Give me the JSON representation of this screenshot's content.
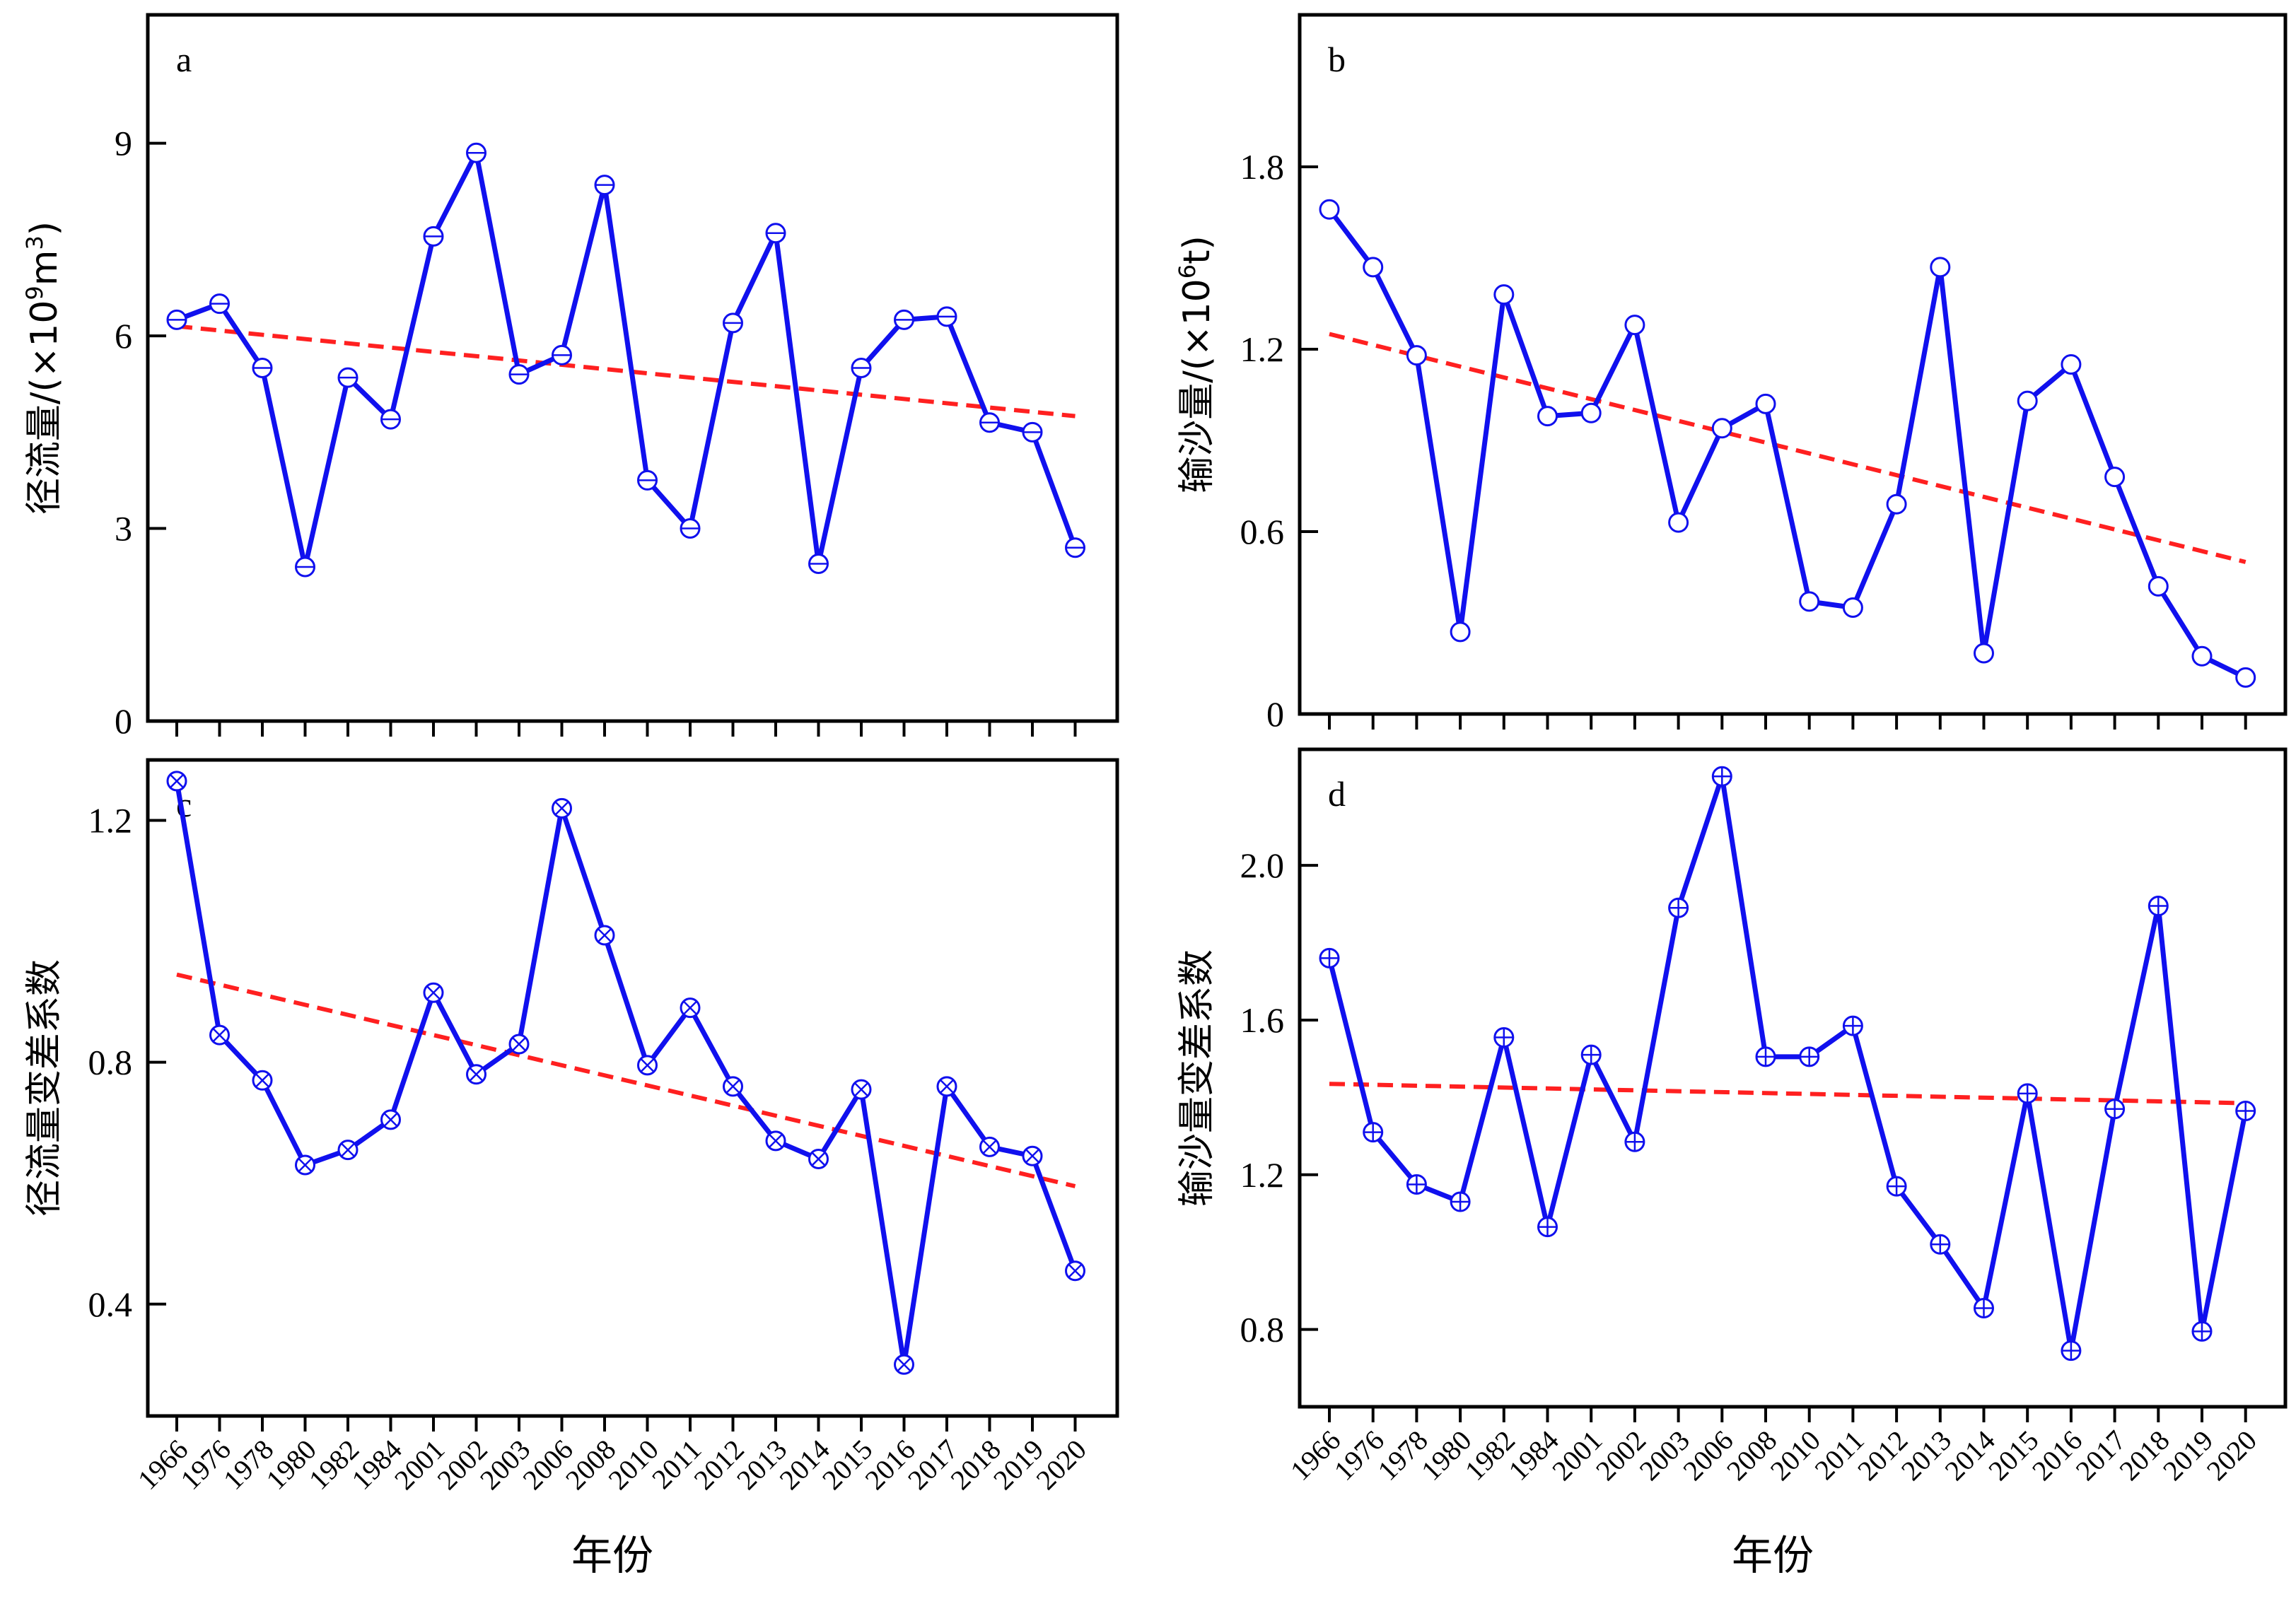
{
  "colors": {
    "series": "#1010ee",
    "trend": "#ff2020",
    "axis": "#000000"
  },
  "xlabel_common": "年份",
  "chart_data": [
    {
      "type": "line",
      "panel_label": "a",
      "title": "",
      "xlabel": "",
      "ylabel": "径流量/(×10⁹m³)",
      "ylabel_main": "径流量/(×10",
      "ylabel_sup1": "9",
      "ylabel_mid": "m",
      "ylabel_sup2": "3",
      "ylabel_end": ")",
      "ylim": [
        0,
        11
      ],
      "yticks": [
        "0",
        "3",
        "6",
        "9"
      ],
      "ytick_values": [
        0,
        3,
        6,
        9
      ],
      "show_xtick_labels": false,
      "marker": "circle-minus",
      "categories": [
        "1966",
        "1976",
        "1978",
        "1980",
        "1982",
        "1984",
        "2001",
        "2002",
        "2003",
        "2006",
        "2008",
        "2010",
        "2011",
        "2012",
        "2013",
        "2014",
        "2015",
        "2016",
        "2017",
        "2018",
        "2019",
        "2020"
      ],
      "series": [
        {
          "values": [
            6.25,
            6.5,
            5.5,
            2.4,
            5.35,
            4.7,
            7.55,
            8.85,
            5.4,
            5.7,
            8.35,
            3.75,
            3.0,
            6.2,
            7.6,
            2.45,
            5.5,
            6.25,
            6.3,
            4.65,
            4.5,
            2.7
          ]
        }
      ],
      "trend": [
        6.15,
        4.75
      ]
    },
    {
      "type": "line",
      "panel_label": "b",
      "title": "",
      "xlabel": "",
      "ylabel": "输沙量/(×10⁶t)",
      "ylabel_main": "输沙量/(×10",
      "ylabel_sup1": "6",
      "ylabel_mid": "t",
      "ylabel_sup2": "",
      "ylabel_end": ")",
      "ylim": [
        0,
        2.3
      ],
      "yticks": [
        "0",
        "0.6",
        "1.2",
        "1.8"
      ],
      "ytick_values": [
        0,
        0.6,
        1.2,
        1.8
      ],
      "show_xtick_labels": false,
      "marker": "circle",
      "categories": [
        "1966",
        "1976",
        "1978",
        "1980",
        "1982",
        "1984",
        "2001",
        "2002",
        "2003",
        "2006",
        "2008",
        "2010",
        "2011",
        "2012",
        "2013",
        "2014",
        "2015",
        "2016",
        "2017",
        "2018",
        "2019",
        "2020"
      ],
      "series": [
        {
          "values": [
            1.66,
            1.47,
            1.18,
            0.27,
            1.38,
            0.98,
            0.99,
            1.28,
            0.63,
            0.94,
            1.02,
            0.37,
            0.35,
            0.69,
            1.47,
            0.2,
            1.03,
            1.15,
            0.78,
            0.42,
            0.19,
            0.12
          ]
        }
      ],
      "trend": [
        1.25,
        0.5
      ]
    },
    {
      "type": "line",
      "panel_label": "c",
      "title": "",
      "xlabel": "年份",
      "ylabel": "径流量变差系数",
      "ylabel_main": "径流量变差系数",
      "ylabel_sup1": "",
      "ylabel_mid": "",
      "ylabel_sup2": "",
      "ylabel_end": "",
      "ylim": [
        0.215,
        1.3
      ],
      "yticks": [
        "0.4",
        "0.8",
        "1.2"
      ],
      "ytick_values": [
        0.4,
        0.8,
        1.2
      ],
      "show_xtick_labels": true,
      "marker": "circle-x",
      "categories": [
        "1966",
        "1976",
        "1978",
        "1980",
        "1982",
        "1984",
        "2001",
        "2002",
        "2003",
        "2006",
        "2008",
        "2010",
        "2011",
        "2012",
        "2013",
        "2014",
        "2015",
        "2016",
        "2017",
        "2018",
        "2019",
        "2020"
      ],
      "series": [
        {
          "values": [
            1.265,
            0.845,
            0.77,
            0.63,
            0.655,
            0.705,
            0.915,
            0.78,
            0.83,
            1.22,
            1.01,
            0.795,
            0.89,
            0.76,
            0.67,
            0.64,
            0.755,
            0.3,
            0.76,
            0.66,
            0.645,
            0.455
          ]
        }
      ],
      "trend": [
        0.945,
        0.595
      ]
    },
    {
      "type": "line",
      "panel_label": "d",
      "title": "",
      "xlabel": "年份",
      "ylabel": "输沙量变差系数",
      "ylabel_main": "输沙量变差系数",
      "ylabel_sup1": "",
      "ylabel_mid": "",
      "ylabel_sup2": "",
      "ylabel_end": "",
      "ylim": [
        0.6,
        2.3
      ],
      "yticks": [
        "0.8",
        "1.2",
        "1.6",
        "2.0"
      ],
      "ytick_values": [
        0.8,
        1.2,
        1.6,
        2.0
      ],
      "show_xtick_labels": true,
      "marker": "circle-plus",
      "categories": [
        "1966",
        "1976",
        "1978",
        "1980",
        "1982",
        "1984",
        "2001",
        "2002",
        "2003",
        "2006",
        "2008",
        "2010",
        "2011",
        "2012",
        "2013",
        "2014",
        "2015",
        "2016",
        "2017",
        "2018",
        "2019",
        "2020"
      ],
      "series": [
        {
          "values": [
            1.76,
            1.31,
            1.175,
            1.13,
            1.555,
            1.065,
            1.51,
            1.285,
            1.89,
            2.23,
            1.505,
            1.505,
            1.585,
            1.17,
            1.02,
            0.855,
            1.41,
            0.745,
            1.37,
            1.895,
            0.795,
            1.365
          ]
        }
      ],
      "trend": [
        1.435,
        1.385
      ]
    }
  ]
}
